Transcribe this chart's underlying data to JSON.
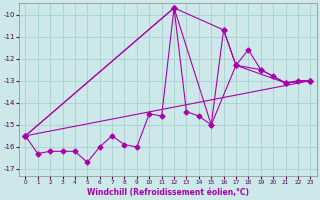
{
  "xlabel": "Windchill (Refroidissement éolien,°C)",
  "background_color": "#cce8e8",
  "grid_color": "#aacece",
  "line_color": "#aa00aa",
  "xlim": [
    -0.5,
    23.5
  ],
  "ylim": [
    -17.3,
    -9.5
  ],
  "yticks": [
    -17,
    -16,
    -15,
    -14,
    -13,
    -12,
    -11,
    -10
  ],
  "xticks": [
    0,
    1,
    2,
    3,
    4,
    5,
    6,
    7,
    8,
    9,
    10,
    11,
    12,
    13,
    14,
    15,
    16,
    17,
    18,
    19,
    20,
    21,
    22,
    23
  ],
  "lines": [
    {
      "x": [
        0,
        1,
        2,
        3,
        4,
        5,
        6,
        7,
        8,
        9,
        10,
        11,
        12,
        13,
        14,
        15,
        16,
        17,
        18,
        19,
        20,
        21,
        22,
        23
      ],
      "y": [
        -15.5,
        -16.3,
        -16.2,
        -16.2,
        -16.2,
        -16.7,
        -16.0,
        -15.5,
        -15.9,
        -16.0,
        -14.5,
        -14.6,
        -9.7,
        -14.4,
        -14.6,
        -15.0,
        -10.7,
        -12.3,
        -11.6,
        -12.5,
        -12.8,
        -13.1,
        -13.0,
        -13.0
      ]
    },
    {
      "x": [
        0,
        12,
        16,
        17,
        19,
        21,
        23
      ],
      "y": [
        -15.5,
        -9.7,
        -10.7,
        -12.3,
        -12.5,
        -13.1,
        -13.0
      ]
    },
    {
      "x": [
        0,
        12,
        15,
        17,
        21,
        23
      ],
      "y": [
        -15.5,
        -9.7,
        -15.0,
        -12.3,
        -13.1,
        -13.0
      ]
    },
    {
      "x": [
        0,
        23
      ],
      "y": [
        -15.5,
        -13.0
      ]
    }
  ]
}
